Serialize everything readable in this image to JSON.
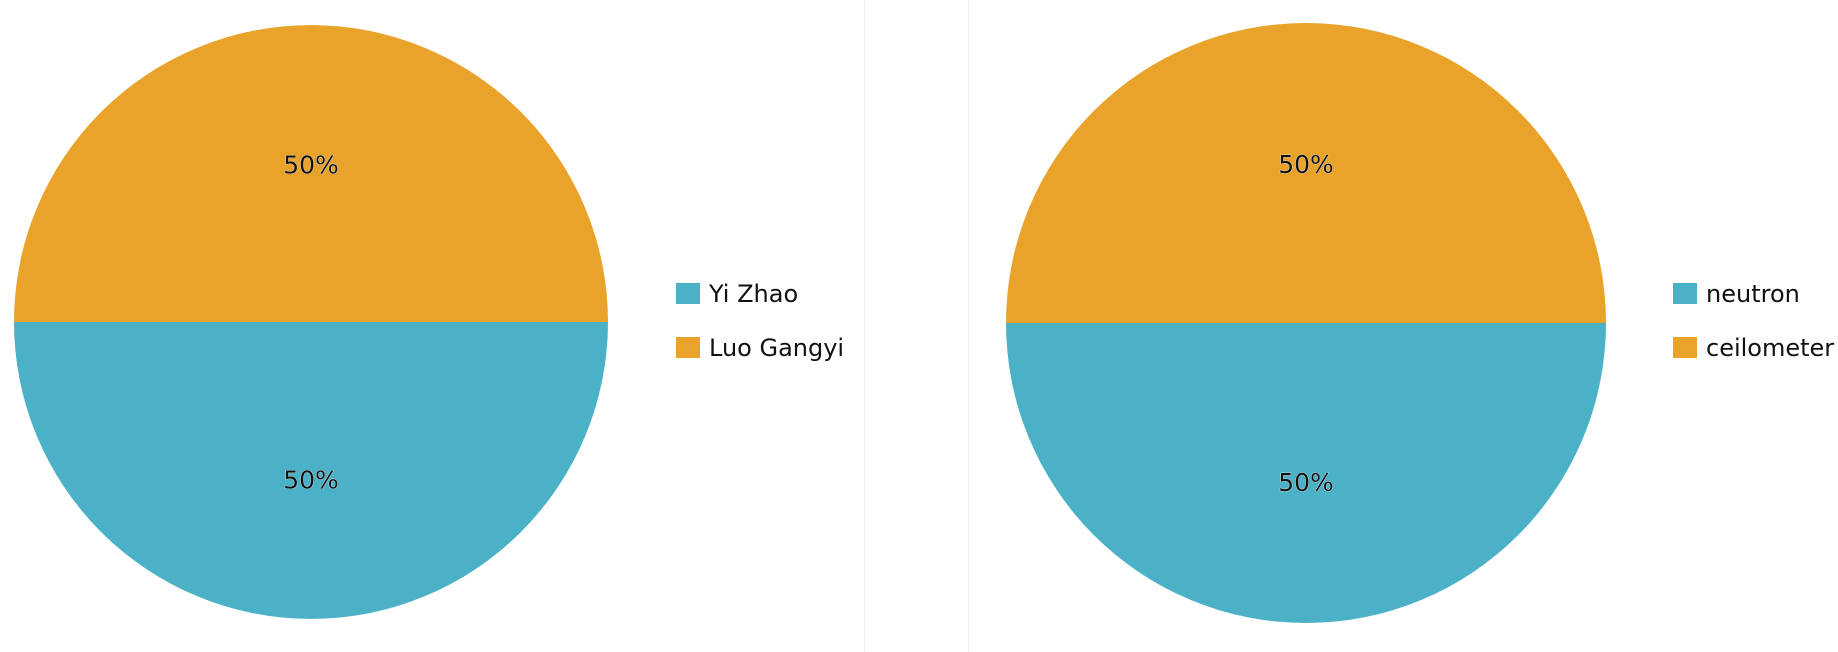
{
  "chart_data": [
    {
      "type": "pie",
      "title": "",
      "legend_position": "right",
      "slices": [
        {
          "name": "Yi Zhao",
          "value": 50,
          "label": "50%",
          "color": "#4bb1c7"
        },
        {
          "name": "Luo Gangyi",
          "value": 50,
          "label": "50%",
          "color": "#e9a32b"
        }
      ]
    },
    {
      "type": "pie",
      "title": "",
      "legend_position": "right",
      "slices": [
        {
          "name": "neutron",
          "value": 50,
          "label": "50%",
          "color": "#4bb1c7"
        },
        {
          "name": "ceilometer",
          "value": 50,
          "label": "50%",
          "color": "#e9a32b"
        }
      ]
    }
  ]
}
